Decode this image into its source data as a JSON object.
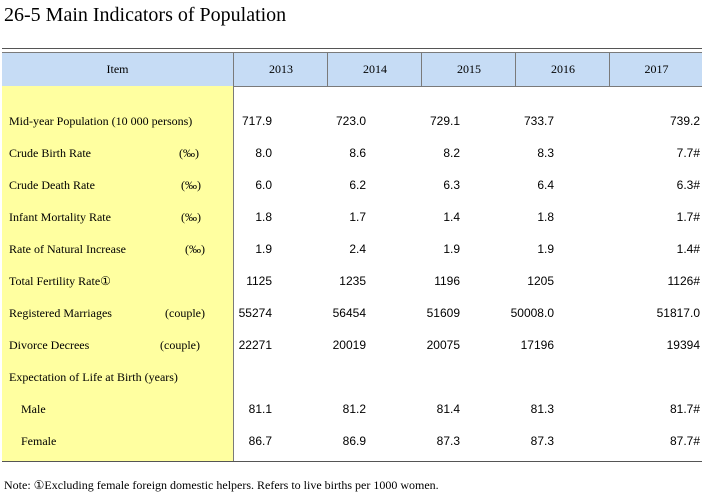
{
  "title": "26-5  Main Indicators of Population",
  "header": {
    "item": "Item",
    "years": [
      "2013",
      "2014",
      "2015",
      "2016",
      "2017"
    ]
  },
  "rows": [
    {
      "label": "Mid-year Population (10 000 persons)",
      "unit": "",
      "values": [
        "717.9",
        "723.0",
        "729.1",
        "733.7",
        "739.2"
      ]
    },
    {
      "label": "Crude Birth Rate",
      "unit": "(‰)",
      "values": [
        "8.0",
        "8.6",
        "8.2",
        "8.3",
        "7.7#"
      ]
    },
    {
      "label": "Crude Death Rate",
      "unit": "(‰)",
      "values": [
        "6.0",
        "6.2",
        "6.3",
        "6.4",
        "6.3#"
      ]
    },
    {
      "label": "Infant Mortality Rate",
      "unit": "(‰)",
      "values": [
        "1.8",
        "1.7",
        "1.4",
        "1.8",
        "1.7#"
      ]
    },
    {
      "label": "Rate of Natural Increase",
      "unit": "(‰)",
      "values": [
        "1.9",
        "2.4",
        "1.9",
        "1.9",
        "1.4#"
      ]
    },
    {
      "label": "Total Fertility Rate①",
      "unit": "",
      "values": [
        "1125",
        "1235",
        "1196",
        "1205",
        "1126#"
      ]
    },
    {
      "label": "Registered Marriages",
      "unit": "(couple)",
      "values": [
        "55274",
        "56454",
        "51609",
        "50008.0",
        "51817.0"
      ]
    },
    {
      "label": "Divorce Decrees",
      "unit": "(couple)",
      "values": [
        "22271",
        "20019",
        "20075",
        "17196",
        "19394"
      ]
    },
    {
      "label": "Expectation of Life at Birth (years)",
      "unit": "",
      "values": [
        "",
        "",
        "",
        "",
        ""
      ]
    },
    {
      "label": "Male",
      "unit": "",
      "values": [
        "81.1",
        "81.2",
        "81.4",
        "81.3",
        "81.7#"
      ]
    },
    {
      "label": "Female",
      "unit": "",
      "values": [
        "86.7",
        "86.9",
        "87.3",
        "87.3",
        "87.7#"
      ]
    }
  ],
  "note": "Note:  ①Excluding female foreign domestic helpers. Refers to live births per 1000 women."
}
